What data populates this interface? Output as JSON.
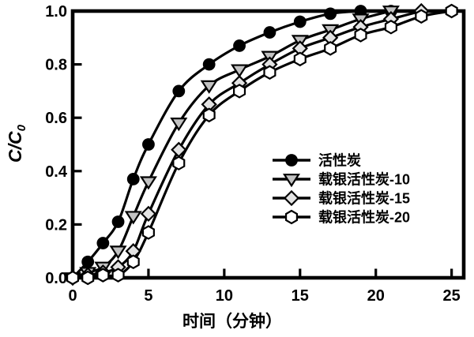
{
  "figure": {
    "background": "#ffffff",
    "axis_color": "#000000"
  },
  "axis_titles": {
    "x": "时间（分钟）",
    "y_main": "C/C",
    "y_sub": "0"
  },
  "chart_data": {
    "type": "line",
    "title": "",
    "xlabel": "时间（分钟）",
    "ylabel": "C/C0",
    "xlim": [
      0,
      25.8
    ],
    "ylim": [
      0,
      1.0
    ],
    "grid": false,
    "legend_position": "center-right",
    "x_ticks": [
      {
        "value": 0,
        "label": "0"
      },
      {
        "value": 5,
        "label": "5"
      },
      {
        "value": 10,
        "label": "10"
      },
      {
        "value": 15,
        "label": "15"
      },
      {
        "value": 20,
        "label": "20"
      },
      {
        "value": 25,
        "label": "25"
      }
    ],
    "y_ticks": [
      {
        "value": 0.0,
        "label": "0.0"
      },
      {
        "value": 0.2,
        "label": "0.2"
      },
      {
        "value": 0.4,
        "label": "0.4"
      },
      {
        "value": 0.6,
        "label": "0.6"
      },
      {
        "value": 0.8,
        "label": "0.8"
      },
      {
        "value": 1.0,
        "label": "1.0"
      }
    ],
    "series": [
      {
        "name": "活性炭",
        "marker": "circle",
        "marker_fill": "#000000",
        "line_color": "#000000",
        "x": [
          0,
          1,
          2,
          3,
          4,
          5,
          7,
          9,
          11,
          13,
          15,
          17,
          19,
          21
        ],
        "y": [
          0.0,
          0.06,
          0.13,
          0.21,
          0.37,
          0.5,
          0.7,
          0.8,
          0.87,
          0.92,
          0.96,
          0.99,
          1.0,
          1.0
        ]
      },
      {
        "name": "载银活性炭-10",
        "marker": "triangle-down",
        "marker_fill": "#c2c2c2",
        "line_color": "#000000",
        "x": [
          0,
          1,
          2,
          3,
          4,
          5,
          7,
          9,
          11,
          13,
          15,
          17,
          19,
          21
        ],
        "y": [
          0.0,
          0.02,
          0.04,
          0.1,
          0.23,
          0.36,
          0.58,
          0.72,
          0.78,
          0.83,
          0.89,
          0.93,
          0.97,
          1.0
        ]
      },
      {
        "name": "载银活性炭-15",
        "marker": "diamond",
        "marker_fill": "#e3e3e3",
        "line_color": "#000000",
        "x": [
          0,
          1,
          2,
          3,
          4,
          5,
          7,
          9,
          11,
          13,
          15,
          17,
          19,
          21,
          23
        ],
        "y": [
          0.0,
          0.01,
          0.02,
          0.04,
          0.1,
          0.24,
          0.48,
          0.65,
          0.73,
          0.8,
          0.86,
          0.9,
          0.94,
          0.97,
          1.0
        ]
      },
      {
        "name": "载银活性炭-20",
        "marker": "hexagon",
        "marker_fill": "#ffffff",
        "line_color": "#000000",
        "x": [
          0,
          1,
          2,
          3,
          4,
          5,
          7,
          9,
          11,
          13,
          15,
          17,
          19,
          21,
          23,
          25
        ],
        "y": [
          0.0,
          0.0,
          0.01,
          0.01,
          0.06,
          0.17,
          0.43,
          0.61,
          0.7,
          0.77,
          0.82,
          0.86,
          0.91,
          0.94,
          0.98,
          1.0
        ]
      }
    ]
  }
}
